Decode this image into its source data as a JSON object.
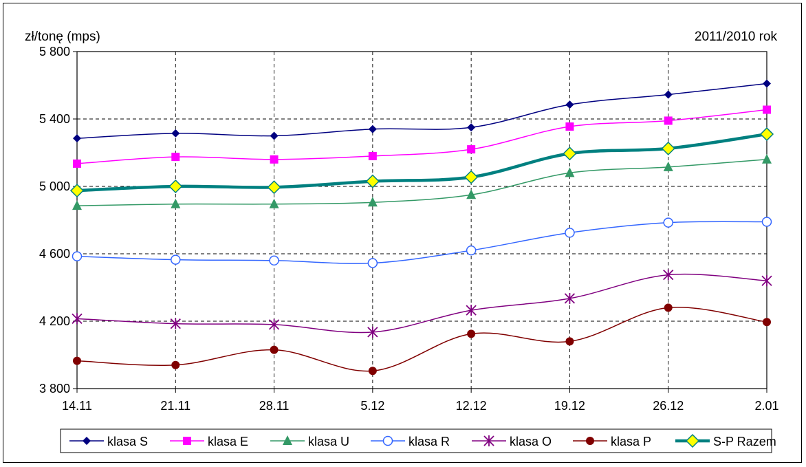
{
  "chart_data": {
    "type": "line",
    "ylabel": "zł/tonę (mps)",
    "annotation": "2011/2010 rok",
    "categories": [
      "14.11",
      "21.11",
      "28.11",
      "5.12",
      "12.12",
      "19.12",
      "26.12",
      "2.01"
    ],
    "ylim": [
      3800,
      5800
    ],
    "yticks": [
      3800,
      4200,
      4600,
      5000,
      5400,
      5800
    ],
    "ytick_labels": [
      "3 800",
      "4 200",
      "4 600",
      "5 000",
      "5 400",
      "5 800"
    ],
    "grid": true,
    "legend_position": "bottom",
    "series": [
      {
        "name": "klasa S",
        "color": "#000080",
        "marker": "diamond",
        "values": [
          5285,
          5315,
          5300,
          5340,
          5350,
          5485,
          5545,
          5610
        ]
      },
      {
        "name": "klasa E",
        "color": "#ff00ff",
        "marker": "square",
        "values": [
          5135,
          5175,
          5160,
          5180,
          5220,
          5355,
          5390,
          5455
        ]
      },
      {
        "name": "klasa U",
        "color": "#339966",
        "marker": "triangle",
        "values": [
          4885,
          4895,
          4895,
          4905,
          4950,
          5080,
          5115,
          5160
        ]
      },
      {
        "name": "klasa R",
        "color": "#3366ff",
        "marker": "circle-open",
        "values": [
          4585,
          4565,
          4560,
          4545,
          4620,
          4725,
          4785,
          4790
        ]
      },
      {
        "name": "klasa O",
        "color": "#800080",
        "marker": "star",
        "values": [
          4215,
          4185,
          4180,
          4135,
          4265,
          4335,
          4475,
          4440
        ]
      },
      {
        "name": "klasa P",
        "color": "#800000",
        "marker": "circle",
        "values": [
          3965,
          3940,
          4030,
          3905,
          4125,
          4080,
          4280,
          4195
        ]
      },
      {
        "name": "S-P Razem",
        "color": "#008080",
        "marker": "diamond-yellow",
        "thick": true,
        "values": [
          4975,
          5000,
          4995,
          5030,
          5055,
          5195,
          5225,
          5310
        ]
      }
    ]
  }
}
